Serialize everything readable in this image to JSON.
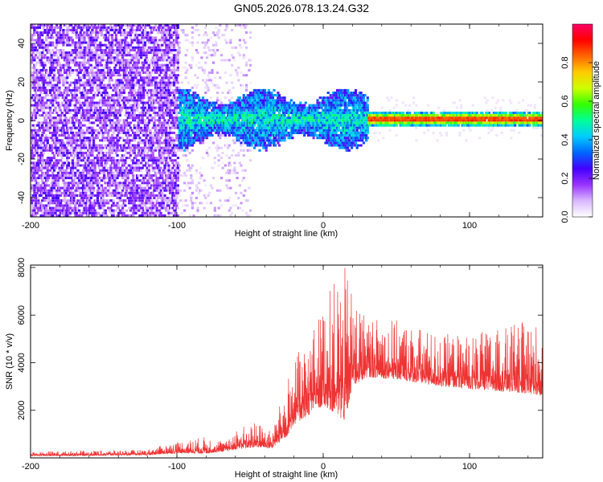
{
  "title": "GN05.2026.078.13.24.G32",
  "chart_data": [
    {
      "type": "heatmap",
      "name": "spectrogram",
      "xlabel": "Height of straight line (km)",
      "ylabel": "Frequency (Hz)",
      "xlim": [
        -200,
        150
      ],
      "ylim": [
        -50,
        50
      ],
      "xticks": [
        -200,
        -100,
        0,
        100
      ],
      "xtick_labels": [
        "-200",
        "-100",
        "0",
        "100"
      ],
      "yticks": [
        -40,
        -20,
        0,
        20,
        40
      ],
      "ytick_labels": [
        "-40",
        "-20",
        "0",
        "20",
        "40"
      ],
      "colorbar": {
        "label": "Normalized spectral amplitude",
        "range": [
          0,
          1
        ],
        "ticks": [
          0.0,
          0.2,
          0.4,
          0.6,
          0.8
        ],
        "tick_labels": [
          "0.0",
          "0.2",
          "0.4",
          "0.6",
          "0.8"
        ],
        "colormap": [
          "#ffffff",
          "#d9b8ff",
          "#9933ff",
          "#4400ff",
          "#0066ff",
          "#00ccff",
          "#00ff99",
          "#33ff00",
          "#ccff00",
          "#ffcc00",
          "#ff6600",
          "#ff0000",
          "#ff0066"
        ]
      },
      "regions": [
        {
          "x": [
            -200,
            -100
          ],
          "freq_spread": [
            -50,
            50
          ],
          "amplitude": [
            0.05,
            0.25
          ],
          "description_level": "broadband noise"
        },
        {
          "x": [
            -100,
            -50
          ],
          "freq_spread": [
            -50,
            50
          ],
          "amplitude": [
            0.02,
            0.12
          ]
        },
        {
          "x": [
            -100,
            30
          ],
          "freq_spread": [
            -12,
            12
          ],
          "amplitude": [
            0.2,
            0.5
          ]
        },
        {
          "x": [
            30,
            150
          ],
          "freq_spread": [
            -3,
            3
          ],
          "amplitude": [
            0.6,
            0.95
          ]
        }
      ]
    },
    {
      "type": "line",
      "name": "snr",
      "xlabel": "Height of straight line (km)",
      "ylabel": "SNR (10 * v/v)",
      "xlim": [
        -200,
        150
      ],
      "ylim": [
        0,
        8100
      ],
      "xticks": [
        -200,
        -100,
        0,
        100
      ],
      "xtick_labels": [
        "-200",
        "-100",
        "0",
        "100"
      ],
      "yticks": [
        2000,
        4000,
        6000,
        8000
      ],
      "ytick_labels": [
        "2000",
        "4000",
        "6000",
        "8000"
      ],
      "color": "#ee3333",
      "envelope": {
        "x": [
          -200,
          -170,
          -120,
          -100,
          -80,
          -65,
          -60,
          -45,
          -35,
          -25,
          -20,
          -10,
          0,
          5,
          15,
          20,
          30,
          50,
          80,
          100,
          120,
          140,
          150
        ],
        "base": [
          80,
          90,
          120,
          200,
          180,
          300,
          350,
          450,
          400,
          900,
          1400,
          1800,
          2200,
          2000,
          1500,
          3000,
          3400,
          3300,
          3000,
          2900,
          2800,
          2700,
          2600
        ],
        "peak": [
          260,
          300,
          350,
          700,
          900,
          700,
          1300,
          1500,
          1100,
          3200,
          4200,
          5000,
          6500,
          7200,
          8000,
          7000,
          6000,
          5800,
          5200,
          5200,
          5400,
          5800,
          5600
        ]
      }
    }
  ]
}
